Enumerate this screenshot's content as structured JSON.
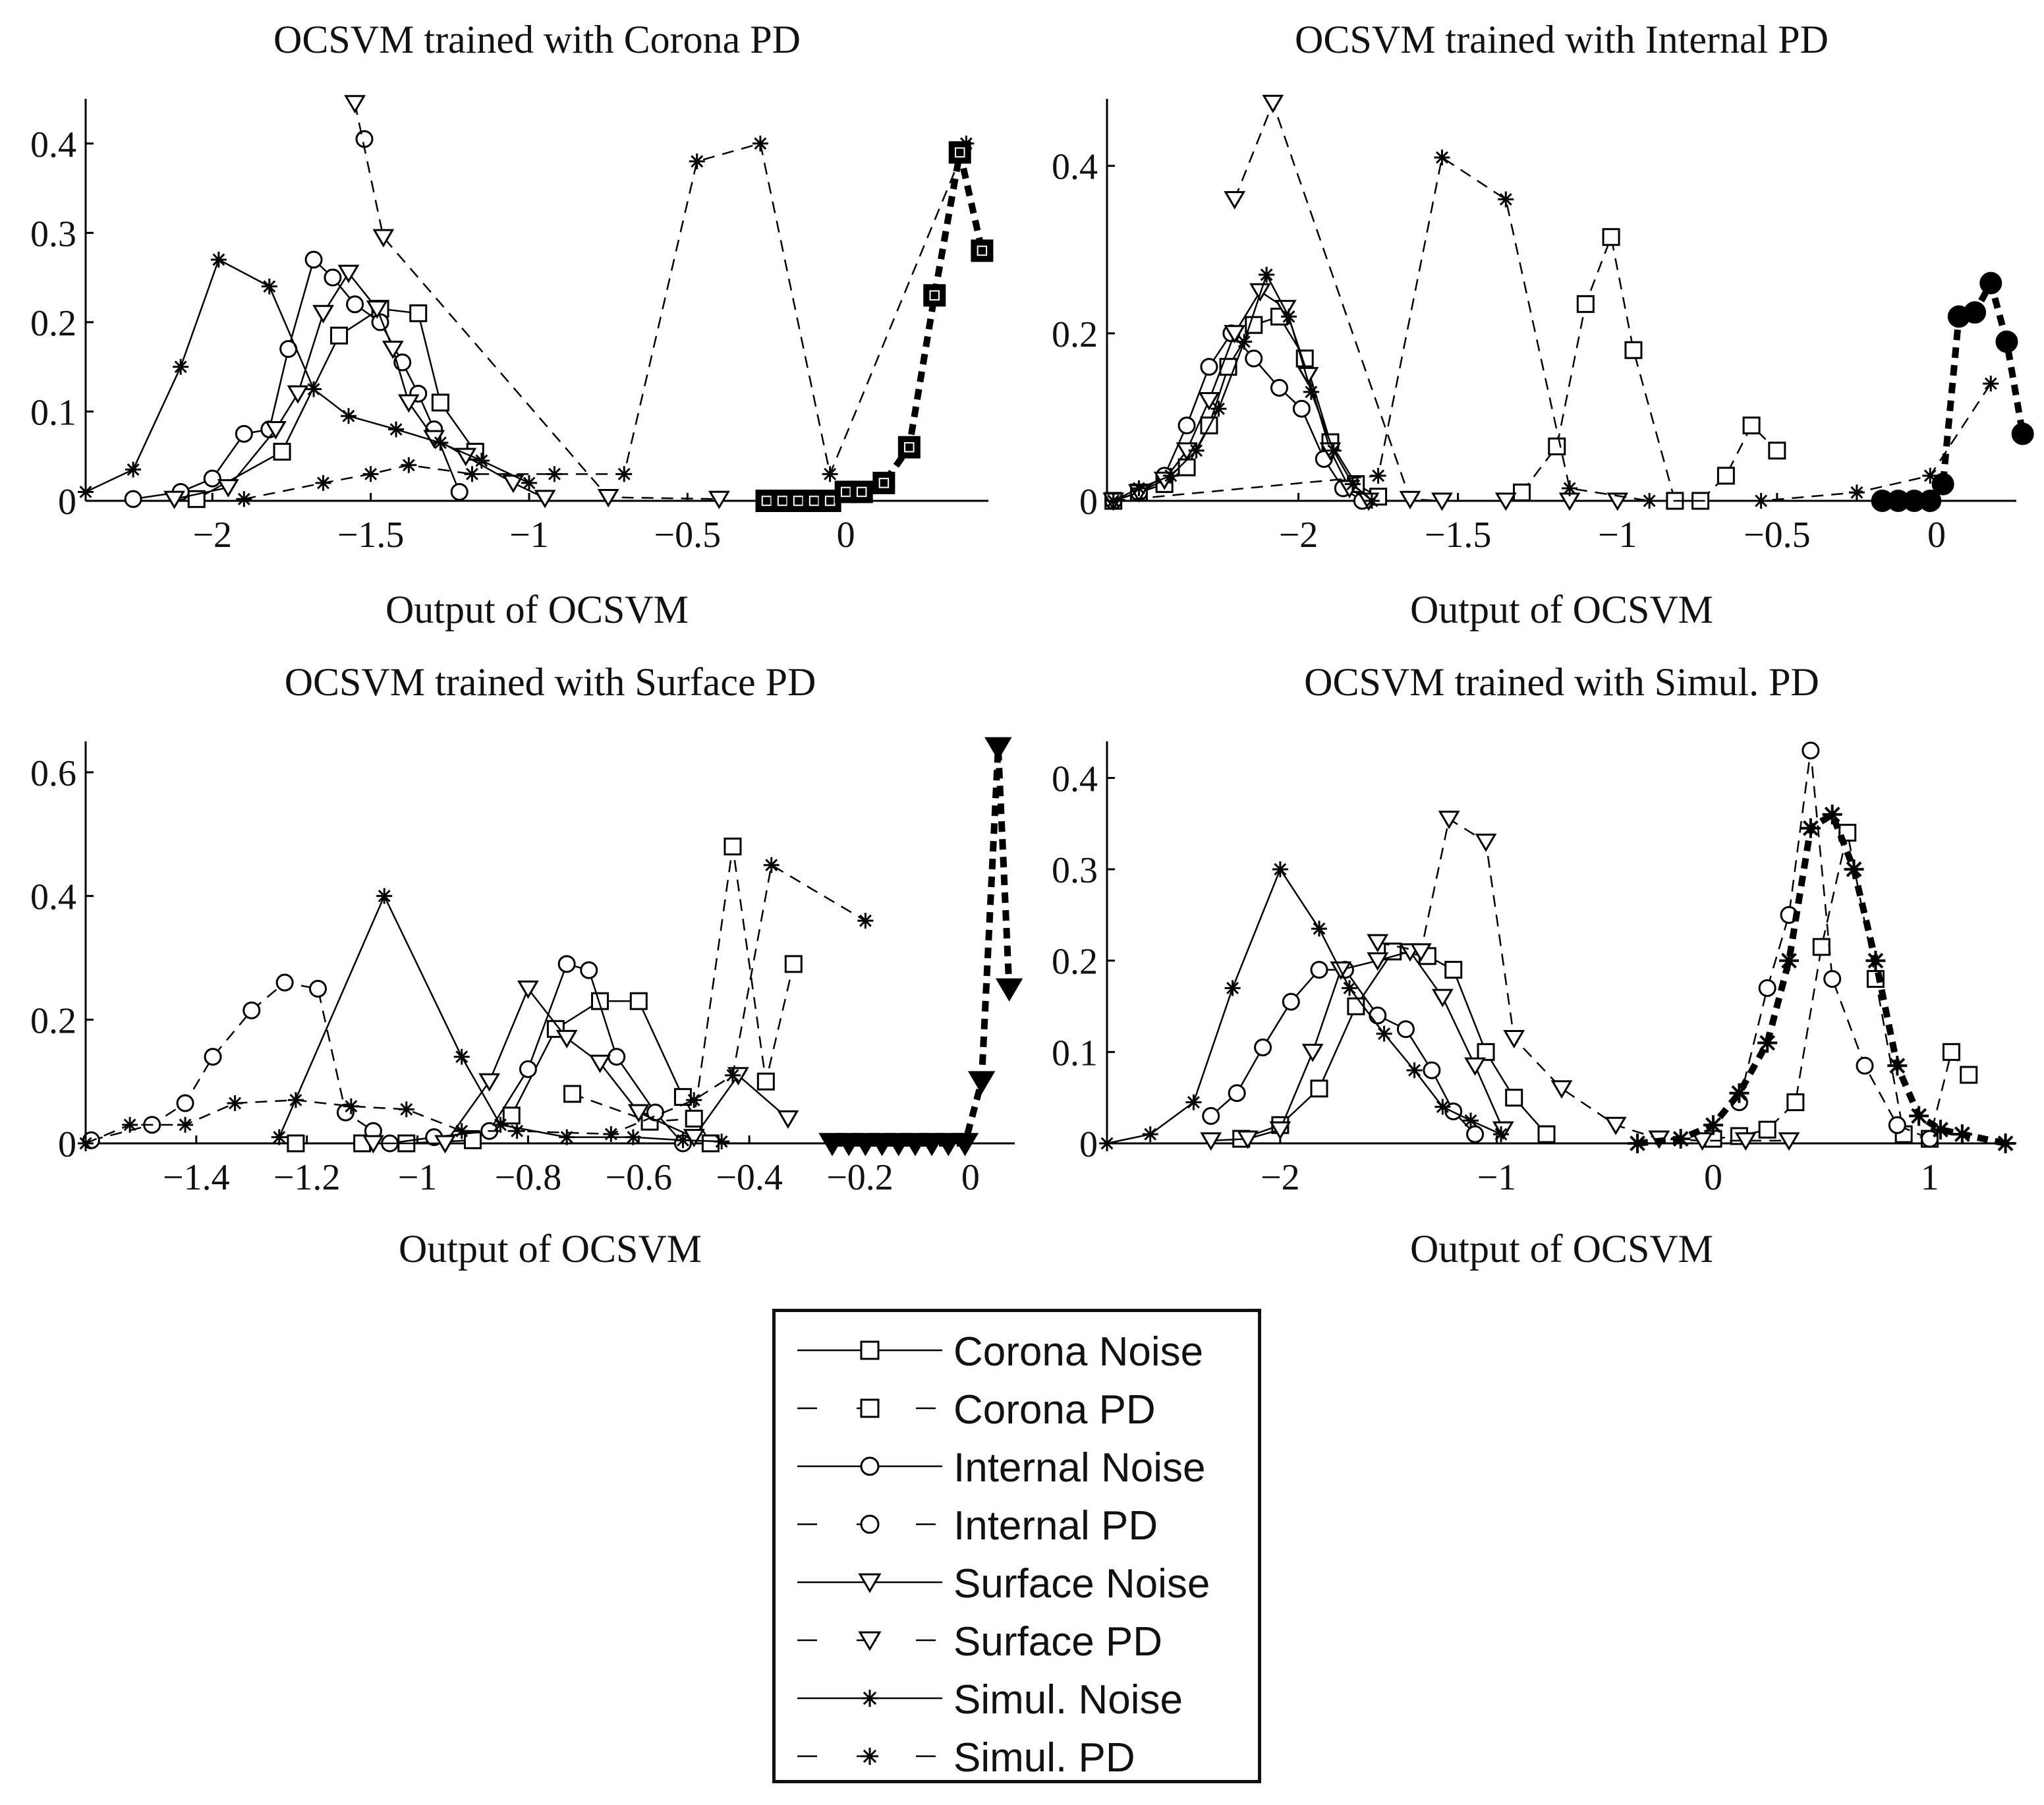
{
  "chart_data": [
    {
      "type": "line",
      "title": "OCSVM trained with Corona PD",
      "xlabel": "Output of OCSVM",
      "ylabel": "",
      "xlim": [
        -2.4,
        0.45
      ],
      "ylim": [
        0,
        0.45
      ],
      "xticks": [
        -2,
        -1.5,
        -1,
        -0.5,
        0
      ],
      "xtick_labels": [
        "−2",
        "−1.5",
        "−1",
        "−0.5",
        "0"
      ],
      "yticks": [
        0,
        0.1,
        0.2,
        0.3,
        0.4
      ],
      "ytick_labels": [
        "0",
        "0.1",
        "0.2",
        "0.3",
        "0.4"
      ],
      "series": [
        {
          "name": "Corona Noise",
          "x": [
            -2.05,
            -1.78,
            -1.6,
            -1.47,
            -1.35,
            -1.28,
            -1.17
          ],
          "y": [
            0.002,
            0.055,
            0.185,
            0.215,
            0.21,
            0.11,
            0.055
          ]
        },
        {
          "name": "Corona PD",
          "x": [
            -0.25,
            -0.2,
            -0.15,
            -0.1,
            -0.05,
            0.0,
            0.05,
            0.12,
            0.2,
            0.28,
            0.36,
            0.43
          ],
          "y": [
            0.0,
            0.0,
            0.0,
            0.0,
            0.0,
            0.01,
            0.01,
            0.02,
            0.06,
            0.23,
            0.39,
            0.28
          ]
        },
        {
          "name": "Internal Noise",
          "x": [
            -2.25,
            -2.1,
            -2.0,
            -1.9,
            -1.82,
            -1.76,
            -1.68,
            -1.62,
            -1.55,
            -1.47,
            -1.4,
            -1.35,
            -1.3,
            -1.22
          ],
          "y": [
            0.002,
            0.01,
            0.025,
            0.075,
            0.08,
            0.17,
            0.27,
            0.25,
            0.22,
            0.2,
            0.155,
            0.12,
            0.08,
            0.01
          ]
        },
        {
          "name": "Internal PD",
          "x": [
            -1.52
          ],
          "y": [
            0.405
          ]
        },
        {
          "name": "Surface Noise",
          "x": [
            -2.12,
            -1.95,
            -1.8,
            -1.73,
            -1.65,
            -1.57,
            -1.48,
            -1.43,
            -1.38,
            -1.3,
            -1.2,
            -1.05,
            -0.95
          ],
          "y": [
            0.002,
            0.015,
            0.08,
            0.12,
            0.21,
            0.255,
            0.215,
            0.17,
            0.11,
            0.07,
            0.05,
            0.02,
            0.003
          ]
        },
        {
          "name": "Surface PD",
          "x": [
            -1.55,
            -1.46,
            -0.75,
            -0.4
          ],
          "y": [
            0.445,
            0.295,
            0.004,
            0.002
          ]
        },
        {
          "name": "Simul. Noise",
          "x": [
            -2.4,
            -2.25,
            -2.1,
            -1.98,
            -1.82,
            -1.68,
            -1.57,
            -1.42,
            -1.28,
            -1.15,
            -1.0
          ],
          "y": [
            0.01,
            0.035,
            0.15,
            0.27,
            0.24,
            0.125,
            0.095,
            0.08,
            0.065,
            0.045,
            0.02
          ]
        },
        {
          "name": "Simul. PD",
          "x": [
            -1.9,
            -1.65,
            -1.5,
            -1.38,
            -1.18,
            -0.92,
            -0.7,
            -0.47,
            -0.27,
            -0.05,
            0.38
          ],
          "y": [
            0.002,
            0.02,
            0.03,
            0.04,
            0.03,
            0.03,
            0.03,
            0.38,
            0.4,
            0.03,
            0.4
          ]
        }
      ]
    },
    {
      "type": "line",
      "title": "OCSVM trained with Internal PD",
      "xlabel": "Output of OCSVM",
      "ylabel": "",
      "xlim": [
        -2.6,
        0.25
      ],
      "ylim": [
        0,
        0.48
      ],
      "xticks": [
        -2,
        -1.5,
        -1,
        -0.5,
        0
      ],
      "xtick_labels": [
        "−2",
        "−1.5",
        "−1",
        "−0.5",
        "0"
      ],
      "yticks": [
        0,
        0.2,
        0.4
      ],
      "ytick_labels": [
        "0",
        "0.2",
        "0.4"
      ],
      "series": [
        {
          "name": "Corona Noise",
          "x": [
            -2.58,
            -2.5,
            -2.42,
            -2.35,
            -2.28,
            -2.22,
            -2.14,
            -2.06,
            -1.98,
            -1.9,
            -1.82,
            -1.75
          ],
          "y": [
            0.0,
            0.01,
            0.02,
            0.04,
            0.09,
            0.16,
            0.21,
            0.22,
            0.17,
            0.07,
            0.02,
            0.005
          ]
        },
        {
          "name": "Corona PD",
          "x": [
            -1.3,
            -1.19,
            -1.1,
            -1.02,
            -0.95,
            -0.82,
            -0.74,
            -0.66,
            -0.58,
            -0.5
          ],
          "y": [
            0.01,
            0.065,
            0.235,
            0.315,
            0.18,
            0.0,
            0.0,
            0.03,
            0.09,
            0.06
          ]
        },
        {
          "name": "Internal Noise",
          "x": [
            -2.58,
            -2.5,
            -2.42,
            -2.35,
            -2.28,
            -2.21,
            -2.14,
            -2.06,
            -1.99,
            -1.92,
            -1.86,
            -1.8
          ],
          "y": [
            0.0,
            0.01,
            0.03,
            0.09,
            0.16,
            0.2,
            0.17,
            0.135,
            0.11,
            0.05,
            0.015,
            0.0
          ]
        },
        {
          "name": "Internal PD",
          "x": [
            -0.17,
            -0.12,
            -0.07,
            -0.02,
            0.02,
            0.07,
            0.12,
            0.17,
            0.22,
            0.27
          ],
          "y": [
            0.0,
            0.0,
            0.0,
            0.0,
            0.02,
            0.22,
            0.225,
            0.26,
            0.19,
            0.08
          ]
        },
        {
          "name": "Surface Noise",
          "x": [
            -2.58,
            -2.5,
            -2.42,
            -2.35,
            -2.28,
            -2.2,
            -2.12,
            -2.04,
            -1.97,
            -1.9,
            -1.84,
            -1.78
          ],
          "y": [
            0.0,
            0.01,
            0.025,
            0.06,
            0.12,
            0.2,
            0.25,
            0.23,
            0.15,
            0.06,
            0.015,
            0.0
          ]
        },
        {
          "name": "Surface PD",
          "x": [
            -2.2,
            -2.08,
            -1.65,
            -1.55,
            -1.35,
            -1.15,
            -1.0
          ],
          "y": [
            0.36,
            0.475,
            0.002,
            0.0,
            0.0,
            0.0,
            0.0
          ]
        },
        {
          "name": "Simul. Noise",
          "x": [
            -2.58,
            -2.5,
            -2.4,
            -2.32,
            -2.25,
            -2.17,
            -2.1,
            -2.03,
            -1.96,
            -1.89,
            -1.83,
            -1.77
          ],
          "y": [
            0.0,
            0.015,
            0.03,
            0.06,
            0.11,
            0.19,
            0.27,
            0.22,
            0.13,
            0.06,
            0.02,
            0.0
          ]
        },
        {
          "name": "Simul. PD",
          "x": [
            -2.58,
            -1.75,
            -1.55,
            -1.35,
            -1.15,
            -0.9,
            -0.55,
            -0.25,
            -0.02,
            0.17
          ],
          "y": [
            0.0,
            0.03,
            0.41,
            0.36,
            0.015,
            0.0,
            0.0,
            0.01,
            0.03,
            0.14
          ]
        }
      ]
    },
    {
      "type": "line",
      "title": "OCSVM trained with Surface PD",
      "xlabel": "Output of OCSVM",
      "ylabel": "",
      "xlim": [
        -1.6,
        0.08
      ],
      "ylim": [
        0,
        0.65
      ],
      "xticks": [
        -1.4,
        -1.2,
        -1,
        -0.8,
        -0.6,
        -0.4,
        -0.2,
        0
      ],
      "xtick_labels": [
        "−1.4",
        "−1.2",
        "−1",
        "−0.8",
        "−0.6",
        "−0.4",
        "−0.2",
        "0"
      ],
      "yticks": [
        0,
        0.2,
        0.4,
        0.6
      ],
      "ytick_labels": [
        "0",
        "0.2",
        "0.4",
        "0.6"
      ],
      "series": [
        {
          "name": "Corona Noise",
          "x": [
            -1.22,
            -1.1,
            -1.02,
            -0.9,
            -0.83,
            -0.75,
            -0.67,
            -0.6,
            -0.52,
            -0.47
          ],
          "y": [
            0.0,
            0.0,
            0.0,
            0.005,
            0.045,
            0.185,
            0.23,
            0.23,
            0.075,
            0.0
          ]
        },
        {
          "name": "Corona PD",
          "x": [
            -0.72,
            -0.58,
            -0.5,
            -0.43,
            -0.37,
            -0.32
          ],
          "y": [
            0.08,
            0.035,
            0.04,
            0.48,
            0.1,
            0.29
          ]
        },
        {
          "name": "Internal Noise",
          "x": [
            -1.05,
            -0.97,
            -0.87,
            -0.8,
            -0.73,
            -0.69,
            -0.64,
            -0.57,
            -0.52
          ],
          "y": [
            0.0,
            0.01,
            0.02,
            0.12,
            0.29,
            0.28,
            0.14,
            0.05,
            0.0
          ]
        },
        {
          "name": "Internal PD",
          "x": [
            -1.59,
            -1.48,
            -1.42,
            -1.37,
            -1.3,
            -1.24,
            -1.18,
            -1.13,
            -1.08
          ],
          "y": [
            0.005,
            0.03,
            0.065,
            0.14,
            0.215,
            0.26,
            0.25,
            0.05,
            0.02
          ]
        },
        {
          "name": "Surface Noise",
          "x": [
            -1.08,
            -0.95,
            -0.87,
            -0.8,
            -0.73,
            -0.67,
            -0.6,
            -0.5,
            -0.42,
            -0.33
          ],
          "y": [
            0.0,
            0.0,
            0.1,
            0.25,
            0.17,
            0.13,
            0.05,
            0.01,
            0.11,
            0.04
          ]
        },
        {
          "name": "Surface PD",
          "x": [
            -0.25,
            -0.22,
            -0.19,
            -0.16,
            -0.13,
            -0.1,
            -0.07,
            -0.04,
            -0.01,
            0.02,
            0.05,
            0.07
          ],
          "y": [
            0.0,
            0.0,
            0.0,
            0.0,
            0.0,
            0.0,
            0.0,
            0.0,
            0.0,
            0.1,
            0.64,
            0.25
          ]
        },
        {
          "name": "Simul. Noise",
          "x": [
            -1.25,
            -1.06,
            -0.92,
            -0.85,
            -0.73,
            -0.61,
            -0.52,
            -0.45
          ],
          "y": [
            0.01,
            0.4,
            0.14,
            0.03,
            0.01,
            0.01,
            0.005,
            0.003
          ]
        },
        {
          "name": "Simul. PD",
          "x": [
            -1.6,
            -1.52,
            -1.42,
            -1.33,
            -1.22,
            -1.12,
            -1.02,
            -0.92,
            -0.82,
            -0.65,
            -0.5,
            -0.43,
            -0.36,
            -0.19
          ],
          "y": [
            0.0,
            0.03,
            0.03,
            0.065,
            0.07,
            0.06,
            0.055,
            0.02,
            0.02,
            0.015,
            0.07,
            0.11,
            0.45,
            0.36
          ]
        }
      ]
    },
    {
      "type": "line",
      "title": "OCSVM trained with Simul. PD",
      "xlabel": "Output of OCSVM",
      "ylabel": "",
      "xlim": [
        -2.8,
        1.4
      ],
      "ylim": [
        0,
        0.44
      ],
      "xticks": [
        -2,
        -1,
        0,
        1
      ],
      "xtick_labels": [
        "−2",
        "−1",
        "0",
        "1"
      ],
      "yticks": [
        0,
        0.1,
        0.2,
        0.3,
        0.4
      ],
      "ytick_labels": [
        "0",
        "0.1",
        "0.2",
        "0.3",
        "0.4"
      ],
      "series": [
        {
          "name": "Corona Noise",
          "x": [
            -2.18,
            -2.0,
            -1.82,
            -1.65,
            -1.48,
            -1.32,
            -1.2,
            -1.05,
            -0.92,
            -0.77
          ],
          "y": [
            0.005,
            0.02,
            0.06,
            0.15,
            0.21,
            0.205,
            0.19,
            0.1,
            0.05,
            0.01
          ]
        },
        {
          "name": "Corona PD",
          "x": [
            0.0,
            0.12,
            0.25,
            0.38,
            0.5,
            0.62,
            0.75,
            0.88,
            1.0,
            1.1,
            1.18
          ],
          "y": [
            0.005,
            0.008,
            0.015,
            0.045,
            0.215,
            0.34,
            0.18,
            0.01,
            0.005,
            0.1,
            0.075
          ]
        },
        {
          "name": "Internal Noise",
          "x": [
            -2.32,
            -2.2,
            -2.08,
            -1.95,
            -1.82,
            -1.7,
            -1.55,
            -1.42,
            -1.3,
            -1.2,
            -1.1
          ],
          "y": [
            0.03,
            0.055,
            0.105,
            0.155,
            0.19,
            0.19,
            0.14,
            0.125,
            0.08,
            0.035,
            0.01
          ]
        },
        {
          "name": "Internal PD",
          "x": [
            0.12,
            0.25,
            0.35,
            0.45,
            0.55,
            0.7,
            0.85,
            1.0
          ],
          "y": [
            0.045,
            0.17,
            0.25,
            0.43,
            0.18,
            0.085,
            0.02,
            0.005
          ]
        },
        {
          "name": "Surface Noise",
          "x": [
            -2.32,
            -2.15,
            -2.0,
            -1.85,
            -1.72,
            -1.55,
            -1.4,
            -1.25,
            -1.1,
            -0.97
          ],
          "y": [
            0.003,
            0.005,
            0.015,
            0.1,
            0.19,
            0.2,
            0.21,
            0.16,
            0.085,
            0.015
          ]
        },
        {
          "name": "Surface PD",
          "x": [
            -1.55,
            -1.35,
            -1.22,
            -1.05,
            -0.92,
            -0.7,
            -0.45,
            -0.25,
            -0.05,
            0.15,
            0.35
          ],
          "y": [
            0.22,
            0.21,
            0.355,
            0.33,
            0.115,
            0.06,
            0.02,
            0.005,
            0.003,
            0.003,
            0.003
          ]
        },
        {
          "name": "Simul. Noise",
          "x": [
            -2.8,
            -2.6,
            -2.4,
            -2.22,
            -2.0,
            -1.82,
            -1.68,
            -1.52,
            -1.38,
            -1.25,
            -1.12,
            -0.98
          ],
          "y": [
            0.0,
            0.01,
            0.045,
            0.17,
            0.3,
            0.235,
            0.17,
            0.12,
            0.08,
            0.04,
            0.025,
            0.01
          ]
        },
        {
          "name": "Simul. PD",
          "x": [
            -0.35,
            -0.15,
            0.0,
            0.12,
            0.25,
            0.35,
            0.45,
            0.55,
            0.65,
            0.75,
            0.85,
            0.95,
            1.05,
            1.15,
            1.35
          ],
          "y": [
            0.0,
            0.005,
            0.02,
            0.055,
            0.11,
            0.2,
            0.345,
            0.36,
            0.3,
            0.2,
            0.085,
            0.03,
            0.015,
            0.01,
            0.0
          ]
        }
      ]
    }
  ],
  "legend": {
    "entries": [
      {
        "label": "Corona Noise",
        "marker": "square",
        "style": "solid"
      },
      {
        "label": "Corona PD",
        "marker": "square",
        "style": "dashed"
      },
      {
        "label": "Internal Noise",
        "marker": "circle",
        "style": "solid"
      },
      {
        "label": "Internal PD",
        "marker": "circle",
        "style": "dashed"
      },
      {
        "label": "Surface Noise",
        "marker": "triangle-down",
        "style": "solid"
      },
      {
        "label": "Surface PD",
        "marker": "triangle-down",
        "style": "dashed"
      },
      {
        "label": "Simul. Noise",
        "marker": "star",
        "style": "solid"
      },
      {
        "label": "Simul. PD",
        "marker": "star",
        "style": "dashed"
      }
    ]
  },
  "highlight": {
    "OCSVM trained with Corona PD": "Corona PD",
    "OCSVM trained with Internal PD": "Internal PD",
    "OCSVM trained with Surface PD": "Surface PD",
    "OCSVM trained with Simul. PD": "Simul. PD"
  }
}
